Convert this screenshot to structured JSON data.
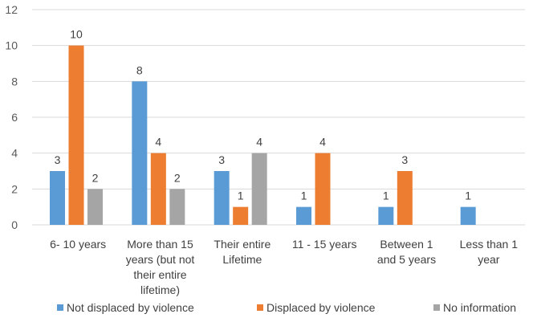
{
  "chart_data": {
    "type": "bar",
    "categories": [
      [
        "6- 10 years"
      ],
      [
        "More than 15",
        "years (but not",
        "their entire",
        "lifetime)"
      ],
      [
        "Their entire",
        "Lifetime"
      ],
      [
        "11 - 15 years"
      ],
      [
        "Between 1",
        "and 5 years"
      ],
      [
        "Less than 1",
        "year"
      ]
    ],
    "series": [
      {
        "name": "Not displaced by violence",
        "color": "#5b9bd5",
        "values": [
          3,
          8,
          3,
          1,
          1,
          1
        ]
      },
      {
        "name": "Displaced by violence",
        "color": "#ed7d31",
        "values": [
          10,
          4,
          1,
          4,
          3,
          null
        ]
      },
      {
        "name": "No information",
        "color": "#a5a5a5",
        "values": [
          2,
          2,
          4,
          null,
          null,
          null
        ]
      }
    ],
    "ylim": [
      0,
      12
    ],
    "yticks": [
      0,
      2,
      4,
      6,
      8,
      10,
      12
    ],
    "grid": true,
    "legend_position": "bottom"
  }
}
